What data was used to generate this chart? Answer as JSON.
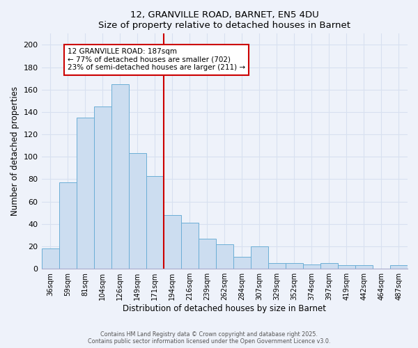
{
  "title": "12, GRANVILLE ROAD, BARNET, EN5 4DU",
  "subtitle": "Size of property relative to detached houses in Barnet",
  "xlabel": "Distribution of detached houses by size in Barnet",
  "ylabel": "Number of detached properties",
  "bin_labels": [
    "36sqm",
    "59sqm",
    "81sqm",
    "104sqm",
    "126sqm",
    "149sqm",
    "171sqm",
    "194sqm",
    "216sqm",
    "239sqm",
    "262sqm",
    "284sqm",
    "307sqm",
    "329sqm",
    "352sqm",
    "374sqm",
    "397sqm",
    "419sqm",
    "442sqm",
    "464sqm",
    "487sqm"
  ],
  "bar_heights": [
    18,
    77,
    135,
    145,
    165,
    103,
    83,
    48,
    41,
    27,
    22,
    11,
    20,
    5,
    5,
    4,
    5,
    3,
    3,
    0,
    3
  ],
  "bar_color": "#ccddf0",
  "bar_edge_color": "#6baed6",
  "background_color": "#eef2fa",
  "grid_color": "#d8e0f0",
  "ylim": [
    0,
    210
  ],
  "yticks": [
    0,
    20,
    40,
    60,
    80,
    100,
    120,
    140,
    160,
    180,
    200
  ],
  "property_label": "12 GRANVILLE ROAD: 187sqm",
  "annotation_line1": "← 77% of detached houses are smaller (702)",
  "annotation_line2": "23% of semi-detached houses are larger (211) →",
  "vline_color": "#cc0000",
  "vline_bin_index": 7,
  "annotation_box_color": "#ffffff",
  "annotation_box_edge": "#cc0000",
  "footnote1": "Contains HM Land Registry data © Crown copyright and database right 2025.",
  "footnote2": "Contains public sector information licensed under the Open Government Licence v3.0."
}
